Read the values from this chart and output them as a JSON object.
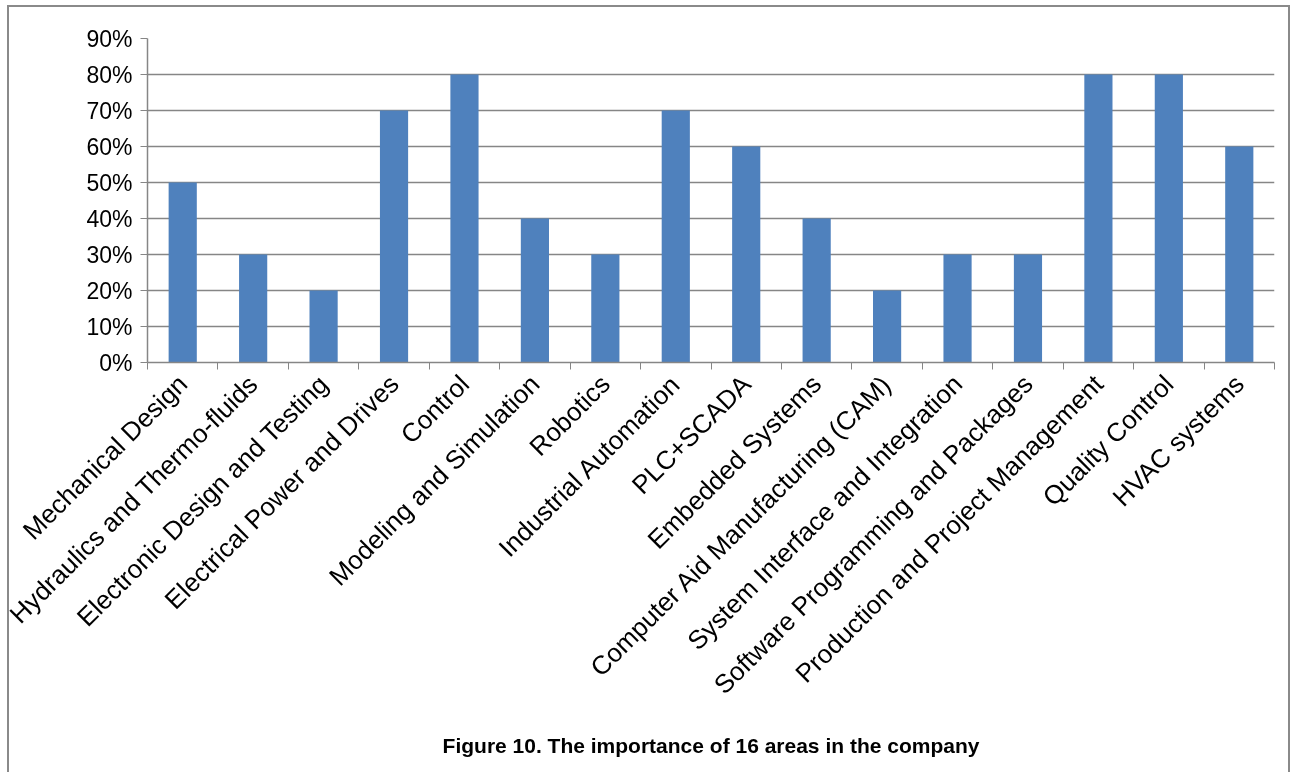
{
  "chart_data": {
    "type": "bar",
    "title": "Figure 10. The importance of 16 areas in the company",
    "categories": [
      "Mechanical Design",
      "Hydraulics and Thermo-fluids",
      "Electronic Design and Testing",
      "Electrical Power and Drives",
      "Control",
      "Modeling and Simulation",
      "Robotics",
      "Industrial Automation",
      "PLC+SCADA",
      "Embedded Systems",
      "Computer Aid Manufacturing (CAM)",
      "System Interface and Integration",
      "Software Programming and Packages",
      "Production and Project Management",
      "Quality Control",
      "HVAC systems"
    ],
    "values": [
      50,
      30,
      20,
      70,
      80,
      40,
      30,
      70,
      60,
      40,
      20,
      30,
      30,
      80,
      80,
      60
    ],
    "color": "#4f81bd",
    "ylim": [
      0,
      90
    ],
    "yticks": [
      {
        "value": 0,
        "label": "0%"
      },
      {
        "value": 10,
        "label": "10%"
      },
      {
        "value": 20,
        "label": "20%"
      },
      {
        "value": 30,
        "label": "30%"
      },
      {
        "value": 40,
        "label": "40%"
      },
      {
        "value": 50,
        "label": "50%"
      },
      {
        "value": 60,
        "label": "60%"
      },
      {
        "value": 70,
        "label": "70%"
      },
      {
        "value": 80,
        "label": "80%"
      },
      {
        "value": 90,
        "label": "90%"
      }
    ],
    "grid": "y"
  }
}
